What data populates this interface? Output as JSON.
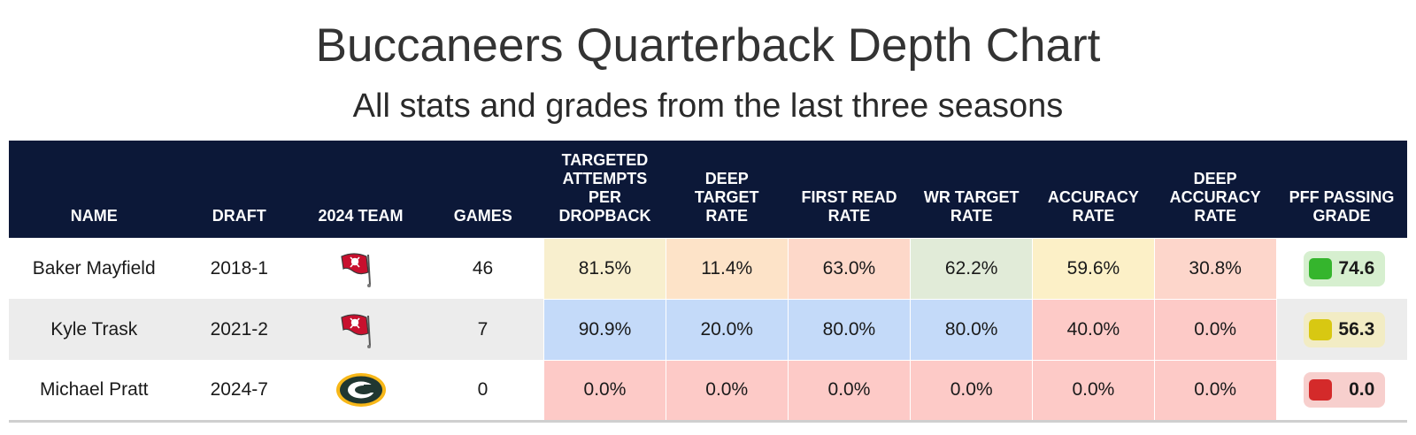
{
  "header": {
    "title": "Buccaneers Quarterback Depth Chart",
    "subtitle": "All stats and grades from the last three seasons"
  },
  "columns": {
    "name": "NAME",
    "draft": "DRAFT",
    "team": "2024 TEAM",
    "games": "GAMES",
    "targeted": [
      "TARGETED",
      "ATTEMPTS",
      "PER",
      "DROPBACK"
    ],
    "deep_target": [
      "DEEP",
      "TARGET",
      "RATE"
    ],
    "first_read": [
      "FIRST READ",
      "RATE"
    ],
    "wr_target": [
      "WR TARGET",
      "RATE"
    ],
    "accuracy": [
      "ACCURACY",
      "RATE"
    ],
    "deep_accuracy": [
      "DEEP",
      "ACCURACY",
      "RATE"
    ],
    "pff": [
      "PFF PASSING",
      "GRADE"
    ]
  },
  "rows": [
    {
      "name": "Baker Mayfield",
      "draft": "2018-1",
      "team_logo": "buccaneers-flag-logo",
      "games": "46",
      "stats": [
        "81.5%",
        "11.4%",
        "63.0%",
        "62.2%",
        "59.6%",
        "30.8%"
      ],
      "stat_colors": [
        "#f8efce",
        "#fde3c8",
        "#fdd8c9",
        "#e1ebd8",
        "#fcf0c7",
        "#fdd6cb"
      ],
      "grade": "74.6",
      "grade_bg": "#d6efcf",
      "grade_color": "#35b52d"
    },
    {
      "name": "Kyle Trask",
      "draft": "2021-2",
      "team_logo": "buccaneers-flag-logo",
      "games": "7",
      "stats": [
        "90.9%",
        "20.0%",
        "80.0%",
        "80.0%",
        "40.0%",
        "0.0%"
      ],
      "stat_colors": [
        "#c4daf9",
        "#c4daf9",
        "#c4daf9",
        "#c4daf9",
        "#fdcac7",
        "#fdcac7"
      ],
      "grade": "56.3",
      "grade_bg": "#f2ecc4",
      "grade_color": "#d8c812"
    },
    {
      "name": "Michael Pratt",
      "draft": "2024-7",
      "team_logo": "packers-g-logo",
      "games": "0",
      "stats": [
        "0.0%",
        "0.0%",
        "0.0%",
        "0.0%",
        "0.0%",
        "0.0%"
      ],
      "stat_colors": [
        "#fdcac7",
        "#fdcac7",
        "#fdcac7",
        "#fdcac7",
        "#fdcac7",
        "#fdcac7"
      ],
      "grade": "0.0",
      "grade_bg": "#f7cfcd",
      "grade_color": "#d42a2a"
    }
  ]
}
